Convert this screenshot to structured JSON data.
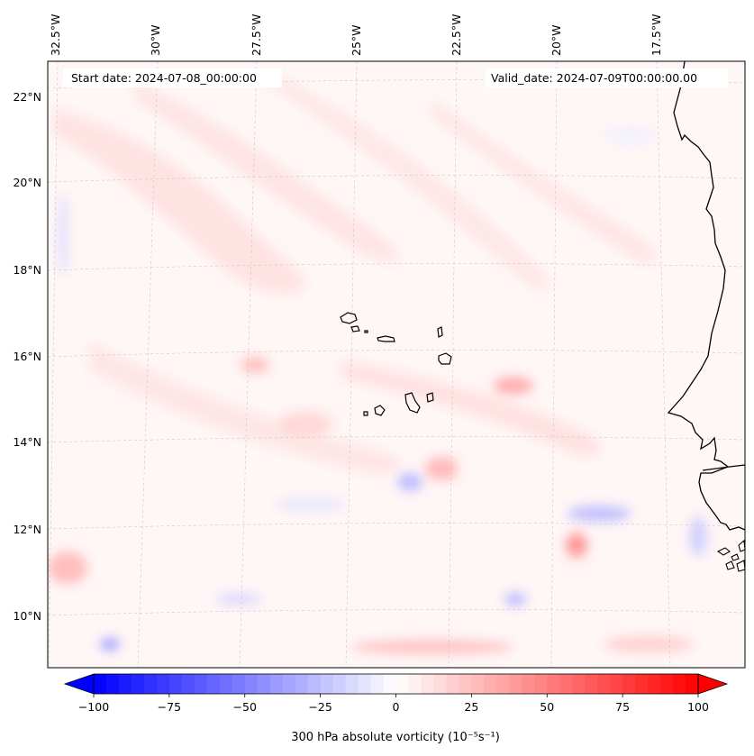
{
  "header": {
    "start_date": "Start date: 2024-07-08_00:00:00",
    "valid_date": "Valid_date: 2024-07-09T00:00:00.00"
  },
  "axes": {
    "lon_labels": [
      "32.5°W",
      "30°W",
      "27.5°W",
      "25°W",
      "22.5°W",
      "20°W",
      "17.5°W"
    ],
    "lat_labels": [
      "22°N",
      "20°N",
      "18°N",
      "16°N",
      "14°N",
      "12°N",
      "10°N"
    ]
  },
  "colorbar": {
    "label": "300 hPa absolute vorticity (10⁻⁵s⁻¹)",
    "ticks": [
      "−100",
      "−75",
      "−50",
      "−25",
      "0",
      "25",
      "50",
      "75",
      "100"
    ],
    "min": -100,
    "max": 100,
    "levels": 48,
    "colormap": "bwr",
    "neg_color": "#0000ff",
    "mid_color": "#ffffff",
    "pos_color": "#ff0000"
  },
  "map": {
    "background_color": "#fff6f6",
    "coastline_color": "#000000",
    "grid_color": "#c8c8c8"
  }
}
